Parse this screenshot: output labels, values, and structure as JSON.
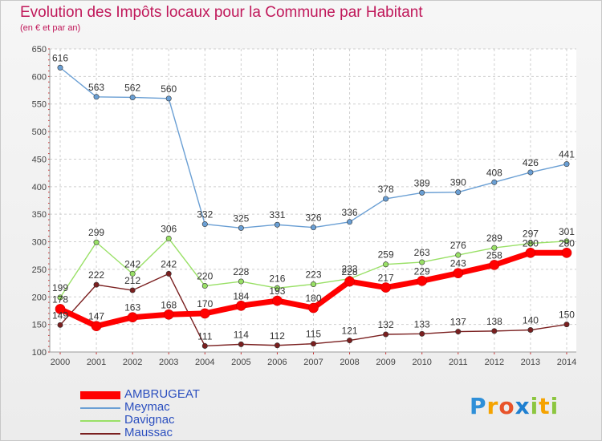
{
  "chart_data": {
    "type": "line",
    "title": "Evolution des Impôts locaux pour la Commune par Habitant",
    "subtitle": "(en € et par an)",
    "xlabel": "",
    "ylabel": "",
    "ylim": [
      100,
      650
    ],
    "yticks": [
      100,
      150,
      200,
      250,
      300,
      350,
      400,
      450,
      500,
      550,
      600,
      650
    ],
    "categories": [
      "2000",
      "2001",
      "2002",
      "2003",
      "2004",
      "2005",
      "2006",
      "2007",
      "2008",
      "2009",
      "2010",
      "2011",
      "2012",
      "2013",
      "2014"
    ],
    "series": [
      {
        "name": "AMBRUGEAT",
        "color": "#ff0000",
        "values": [
          178,
          147,
          163,
          168,
          170,
          184,
          193,
          180,
          228,
          217,
          229,
          243,
          258,
          280,
          280
        ]
      },
      {
        "name": "Meymac",
        "color": "#6a9fd4",
        "values": [
          616,
          563,
          562,
          560,
          332,
          325,
          331,
          326,
          336,
          378,
          389,
          390,
          408,
          426,
          441
        ]
      },
      {
        "name": "Davignac",
        "color": "#99e066",
        "values": [
          199,
          299,
          242,
          306,
          220,
          228,
          216,
          223,
          233,
          259,
          263,
          276,
          289,
          297,
          301
        ]
      },
      {
        "name": "Maussac",
        "color": "#7a1f1f",
        "values": [
          149,
          222,
          212,
          242,
          111,
          114,
          112,
          115,
          121,
          132,
          133,
          137,
          138,
          140,
          150
        ]
      }
    ],
    "legend_position": "bottom-left"
  },
  "logo": {
    "text": "Proxiti",
    "letters": [
      "P",
      "r",
      "o",
      "x",
      "i",
      "t",
      "i"
    ]
  }
}
